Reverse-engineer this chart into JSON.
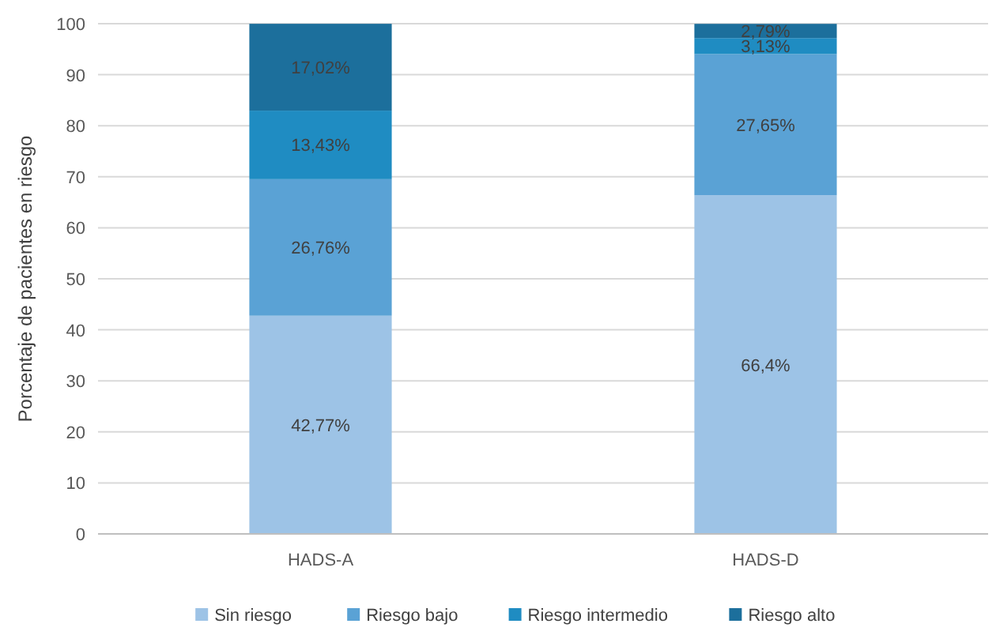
{
  "chart_data": {
    "type": "bar",
    "stacked": true,
    "ylabel": "Porcentaje de pacientes en riesgo",
    "categories": [
      "HADS-A",
      "HADS-D"
    ],
    "series": [
      {
        "name": "Sin riesgo",
        "color": "#9dc3e6",
        "values": [
          42.77,
          66.4
        ],
        "value_labels": [
          "42,77%",
          "66,4%"
        ]
      },
      {
        "name": "Riesgo bajo",
        "color": "#5aa2d5",
        "values": [
          26.76,
          27.65
        ],
        "value_labels": [
          "26,76%",
          "27,65%"
        ]
      },
      {
        "name": "Riesgo intermedio",
        "color": "#1f8cc2",
        "values": [
          13.43,
          3.13
        ],
        "value_labels": [
          "13,43%",
          "3,13%"
        ]
      },
      {
        "name": "Riesgo alto",
        "color": "#1c6f9c",
        "values": [
          17.02,
          2.79
        ],
        "value_labels": [
          "17,02%",
          "2,79%"
        ]
      }
    ],
    "ylim": [
      0,
      100
    ],
    "yticks": [
      0,
      10,
      20,
      30,
      40,
      50,
      60,
      70,
      80,
      90,
      100
    ],
    "grid": "y",
    "legend": "bottom"
  }
}
